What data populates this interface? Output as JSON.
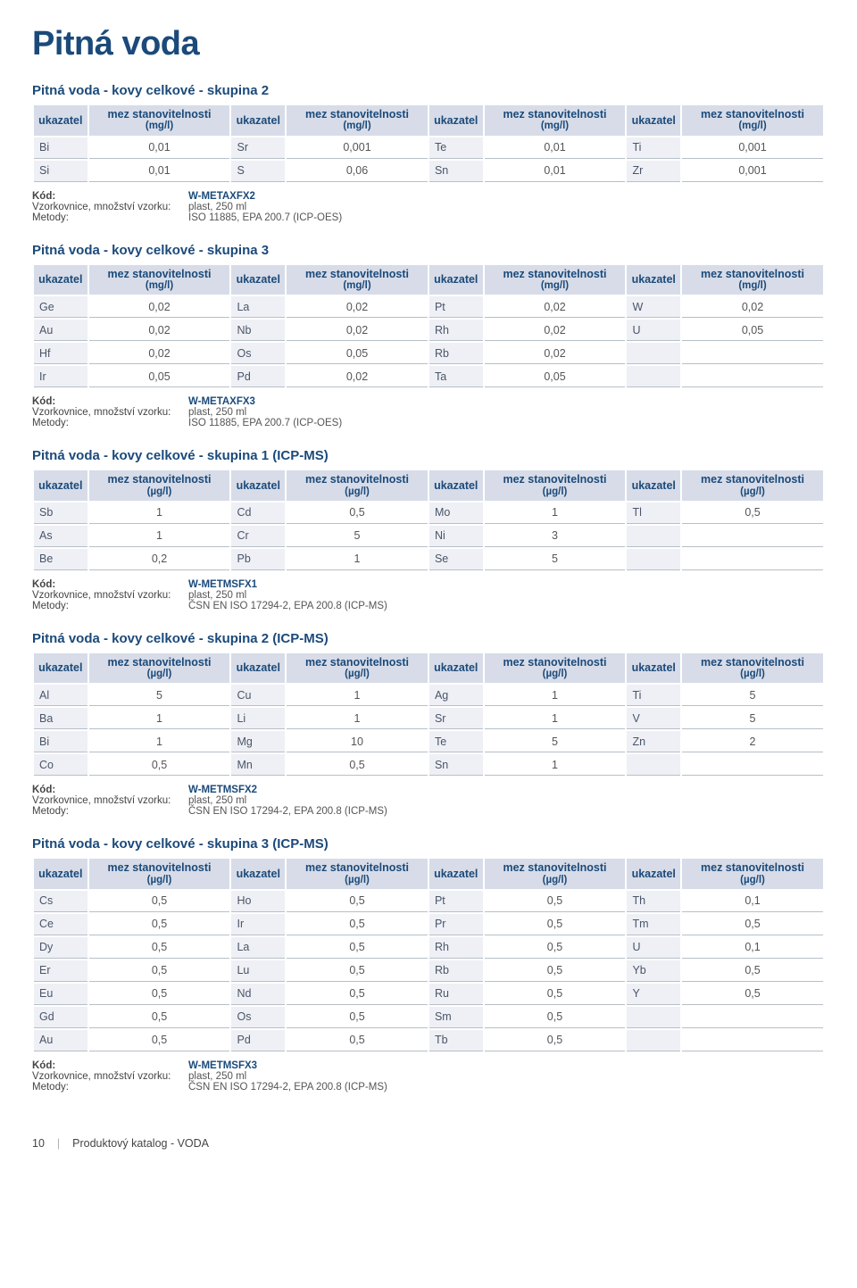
{
  "page_title": "Pitná voda",
  "col_header_ukazatel": "ukazatel",
  "col_header_mez_mg": "mez stanovitelnosti",
  "col_header_mez_mg_unit": "(mg/l)",
  "col_header_mez_ug_unit": "(µg/l)",
  "meta_labels": {
    "kod": "Kód:",
    "vzork": "Vzorkovnice, množství vzorku:",
    "metody": "Metody:"
  },
  "sections": [
    {
      "title": "Pitná voda - kovy celkové - skupina 2",
      "unit": "mg",
      "rows": [
        [
          "Bi",
          "0,01",
          "Sr",
          "0,001",
          "Te",
          "0,01",
          "Ti",
          "0,001"
        ],
        [
          "Si",
          "0,01",
          "S",
          "0,06",
          "Sn",
          "0,01",
          "Zr",
          "0,001"
        ]
      ],
      "meta": {
        "kod": "W-METAXFX2",
        "vzork": "plast, 250 ml",
        "metody": "ISO 11885, EPA 200.7 (ICP-OES)"
      }
    },
    {
      "title": "Pitná voda - kovy celkové - skupina 3",
      "unit": "mg",
      "rows": [
        [
          "Ge",
          "0,02",
          "La",
          "0,02",
          "Pt",
          "0,02",
          "W",
          "0,02"
        ],
        [
          "Au",
          "0,02",
          "Nb",
          "0,02",
          "Rh",
          "0,02",
          "U",
          "0,05"
        ],
        [
          "Hf",
          "0,02",
          "Os",
          "0,05",
          "Rb",
          "0,02",
          "",
          ""
        ],
        [
          "Ir",
          "0,05",
          "Pd",
          "0,02",
          "Ta",
          "0,05",
          "",
          ""
        ]
      ],
      "meta": {
        "kod": "W-METAXFX3",
        "vzork": "plast, 250 ml",
        "metody": "ISO 11885, EPA 200.7 (ICP-OES)"
      }
    },
    {
      "title": "Pitná voda - kovy celkové - skupina 1 (ICP-MS)",
      "unit": "ug",
      "rows": [
        [
          "Sb",
          "1",
          "Cd",
          "0,5",
          "Mo",
          "1",
          "Tl",
          "0,5"
        ],
        [
          "As",
          "1",
          "Cr",
          "5",
          "Ni",
          "3",
          "",
          ""
        ],
        [
          "Be",
          "0,2",
          "Pb",
          "1",
          "Se",
          "5",
          "",
          ""
        ]
      ],
      "meta": {
        "kod": "W-METMSFX1",
        "vzork": "plast, 250 ml",
        "metody": "ČSN EN ISO 17294-2, EPA 200.8 (ICP-MS)"
      }
    },
    {
      "title": "Pitná voda - kovy celkové - skupina 2 (ICP-MS)",
      "unit": "ug",
      "rows": [
        [
          "Al",
          "5",
          "Cu",
          "1",
          "Ag",
          "1",
          "Ti",
          "5"
        ],
        [
          "Ba",
          "1",
          "Li",
          "1",
          "Sr",
          "1",
          "V",
          "5"
        ],
        [
          "Bi",
          "1",
          "Mg",
          "10",
          "Te",
          "5",
          "Zn",
          "2"
        ],
        [
          "Co",
          "0,5",
          "Mn",
          "0,5",
          "Sn",
          "1",
          "",
          ""
        ]
      ],
      "meta": {
        "kod": "W-METMSFX2",
        "vzork": "plast, 250 ml",
        "metody": "ČSN EN ISO 17294-2, EPA 200.8 (ICP-MS)"
      }
    },
    {
      "title": "Pitná voda - kovy celkové - skupina 3 (ICP-MS)",
      "unit": "ug",
      "rows": [
        [
          "Cs",
          "0,5",
          "Ho",
          "0,5",
          "Pt",
          "0,5",
          "Th",
          "0,1"
        ],
        [
          "Ce",
          "0,5",
          "Ir",
          "0,5",
          "Pr",
          "0,5",
          "Tm",
          "0,5"
        ],
        [
          "Dy",
          "0,5",
          "La",
          "0,5",
          "Rh",
          "0,5",
          "U",
          "0,1"
        ],
        [
          "Er",
          "0,5",
          "Lu",
          "0,5",
          "Rb",
          "0,5",
          "Yb",
          "0,5"
        ],
        [
          "Eu",
          "0,5",
          "Nd",
          "0,5",
          "Ru",
          "0,5",
          "Y",
          "0,5"
        ],
        [
          "Gd",
          "0,5",
          "Os",
          "0,5",
          "Sm",
          "0,5",
          "",
          ""
        ],
        [
          "Au",
          "0,5",
          "Pd",
          "0,5",
          "Tb",
          "0,5",
          "",
          ""
        ]
      ],
      "meta": {
        "kod": "W-METMSFX3",
        "vzork": "plast, 250 ml",
        "metody": "ČSN EN ISO 17294-2, EPA 200.8 (ICP-MS)"
      }
    }
  ],
  "footer": {
    "page_number": "10",
    "catalog": "Produktový katalog - VODA"
  }
}
